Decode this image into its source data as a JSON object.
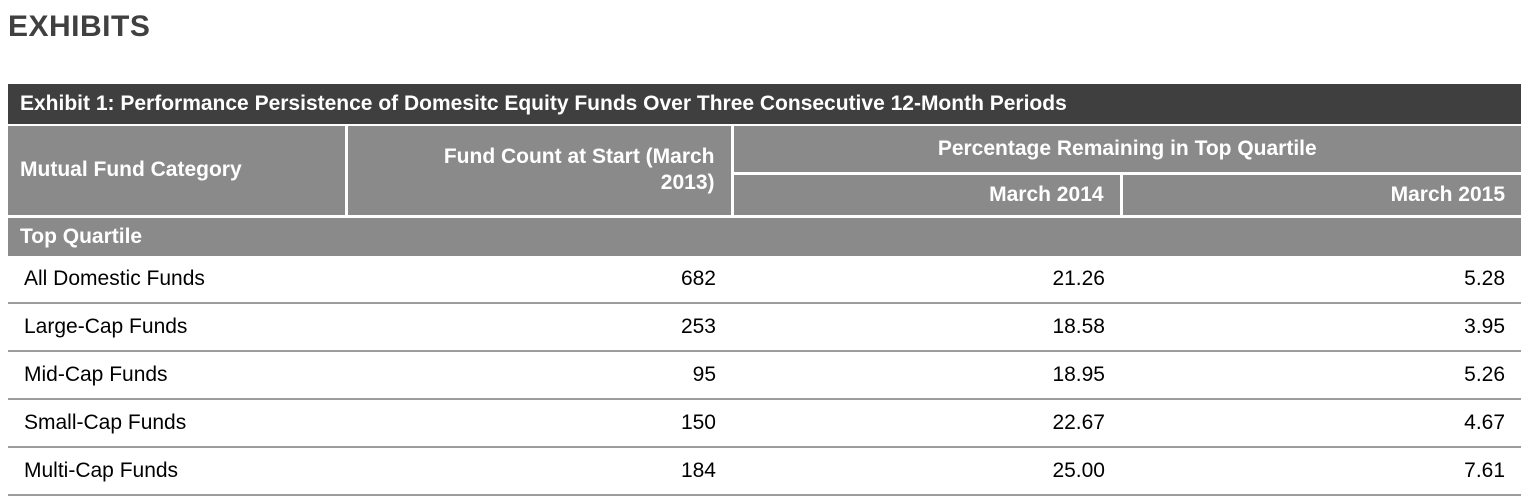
{
  "page": {
    "title": "EXHIBITS"
  },
  "exhibit_table": {
    "caption": "Exhibit 1: Performance Persistence of Domesitc Equity Funds Over Three Consecutive 12-Month Periods",
    "headers": {
      "category": "Mutual Fund Category",
      "fund_count": "Fund Count at Start (March 2013)",
      "pct_group": "Percentage Remaining in Top Quartile",
      "march_2014": "March 2014",
      "march_2015": "March 2015"
    },
    "section_label": "Top Quartile",
    "rows": [
      {
        "category": "All Domestic Funds",
        "fund_count": "682",
        "march_2014": "21.26",
        "march_2015": "5.28"
      },
      {
        "category": "Large-Cap Funds",
        "fund_count": "253",
        "march_2014": "18.58",
        "march_2015": "3.95"
      },
      {
        "category": "Mid-Cap Funds",
        "fund_count": "95",
        "march_2014": "18.95",
        "march_2015": "5.26"
      },
      {
        "category": "Small-Cap Funds",
        "fund_count": "150",
        "march_2014": "22.67",
        "march_2015": "4.67"
      },
      {
        "category": "Multi-Cap Funds",
        "fund_count": "184",
        "march_2014": "25.00",
        "march_2015": "7.61"
      }
    ],
    "colors": {
      "caption_bg": "#3f3f3f",
      "header_bg": "#8a8a8a",
      "header_text": "#ffffff",
      "row_border": "#9c9c9c",
      "title_text": "#404040"
    }
  }
}
